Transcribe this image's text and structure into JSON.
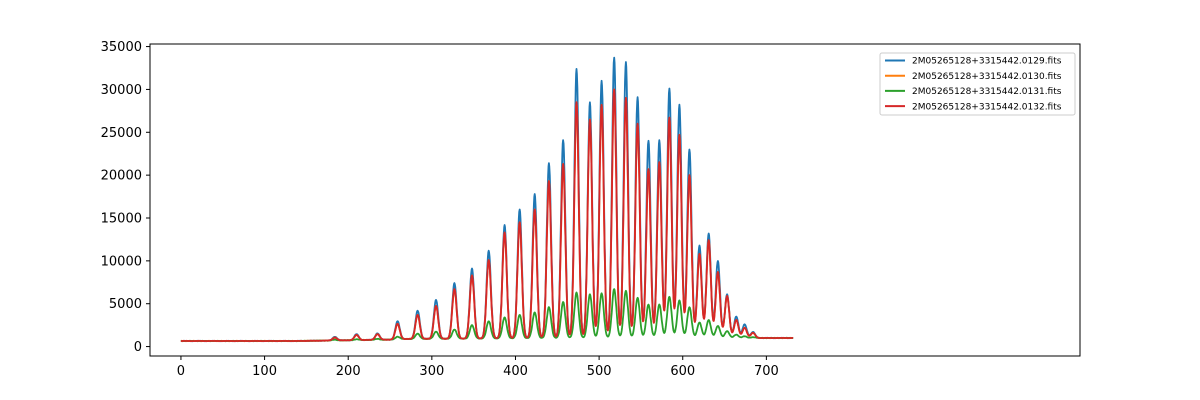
{
  "chart_data": {
    "type": "line",
    "title": "",
    "xlabel": "",
    "ylabel": "",
    "xlim": [
      -37,
      1075
    ],
    "ylim": [
      -1100,
      35300
    ],
    "xticks": [
      0,
      100,
      200,
      300,
      400,
      500,
      600,
      700
    ],
    "yticks": [
      0,
      5000,
      10000,
      15000,
      20000,
      25000,
      30000,
      35000
    ],
    "grid": false,
    "legend": "top-right",
    "x_range": [
      0,
      732
    ],
    "baseline": 650,
    "tail_level": 1000,
    "peak_width": 2.6,
    "series": [
      {
        "name": "2M05265128+3315442.0129.fits",
        "color": "#1f77b4",
        "peaks": [
          [
            184,
            1150
          ],
          [
            210,
            1450
          ],
          [
            235,
            1550
          ],
          [
            259,
            2950
          ],
          [
            283,
            4200
          ],
          [
            305,
            5450
          ],
          [
            327,
            7400
          ],
          [
            348,
            9100
          ],
          [
            368,
            11200
          ],
          [
            387,
            14200
          ],
          [
            405,
            16000
          ],
          [
            423,
            17800
          ],
          [
            440,
            21400
          ],
          [
            457,
            24100
          ],
          [
            473,
            32400
          ],
          [
            489,
            28500
          ],
          [
            503,
            31000
          ],
          [
            518,
            33700
          ],
          [
            532,
            33200
          ],
          [
            546,
            29100
          ],
          [
            559,
            24000
          ],
          [
            572,
            24100
          ],
          [
            584,
            30100
          ],
          [
            596,
            28200
          ],
          [
            608,
            23000
          ],
          [
            620,
            11800
          ],
          [
            631,
            13200
          ],
          [
            642,
            10000
          ],
          [
            653,
            6100
          ],
          [
            664,
            3500
          ],
          [
            674,
            2600
          ],
          [
            684,
            1700
          ]
        ]
      },
      {
        "name": "2M05265128+3315442.0130.fits",
        "color": "#ff7f0e",
        "peaks": [
          [
            184,
            1050
          ],
          [
            210,
            1350
          ],
          [
            235,
            1450
          ],
          [
            259,
            2650
          ],
          [
            283,
            3700
          ],
          [
            305,
            4750
          ],
          [
            327,
            6700
          ],
          [
            348,
            8300
          ],
          [
            368,
            10100
          ],
          [
            387,
            13300
          ],
          [
            405,
            14500
          ],
          [
            423,
            16000
          ],
          [
            440,
            19300
          ],
          [
            457,
            21300
          ],
          [
            473,
            28500
          ],
          [
            489,
            26500
          ],
          [
            503,
            28200
          ],
          [
            518,
            30000
          ],
          [
            532,
            29000
          ],
          [
            546,
            26000
          ],
          [
            559,
            20700
          ],
          [
            572,
            21500
          ],
          [
            584,
            26700
          ],
          [
            596,
            24700
          ],
          [
            608,
            20000
          ],
          [
            620,
            10800
          ],
          [
            631,
            12400
          ],
          [
            642,
            8700
          ],
          [
            653,
            5900
          ],
          [
            664,
            3100
          ],
          [
            674,
            2200
          ],
          [
            684,
            1600
          ]
        ]
      },
      {
        "name": "2M05265128+3315442.0131.fits",
        "color": "#2ca02c",
        "peaks": [
          [
            184,
            800
          ],
          [
            210,
            850
          ],
          [
            235,
            900
          ],
          [
            259,
            1150
          ],
          [
            283,
            1500
          ],
          [
            305,
            1750
          ],
          [
            327,
            2000
          ],
          [
            348,
            2500
          ],
          [
            368,
            2950
          ],
          [
            387,
            3400
          ],
          [
            405,
            3700
          ],
          [
            423,
            4000
          ],
          [
            440,
            4600
          ],
          [
            457,
            5200
          ],
          [
            473,
            6300
          ],
          [
            489,
            6100
          ],
          [
            503,
            6200
          ],
          [
            518,
            6700
          ],
          [
            532,
            6500
          ],
          [
            546,
            5700
          ],
          [
            559,
            4900
          ],
          [
            572,
            4900
          ],
          [
            584,
            5800
          ],
          [
            596,
            5400
          ],
          [
            608,
            4600
          ],
          [
            620,
            2800
          ],
          [
            631,
            3100
          ],
          [
            642,
            2400
          ],
          [
            653,
            1800
          ],
          [
            664,
            1400
          ],
          [
            674,
            1200
          ],
          [
            684,
            1100
          ]
        ]
      },
      {
        "name": "2M05265128+3315442.0132.fits",
        "color": "#d62728",
        "peaks": [
          [
            184,
            1050
          ],
          [
            210,
            1350
          ],
          [
            235,
            1450
          ],
          [
            259,
            2650
          ],
          [
            283,
            3700
          ],
          [
            305,
            4750
          ],
          [
            327,
            6700
          ],
          [
            348,
            8300
          ],
          [
            368,
            10100
          ],
          [
            387,
            13300
          ],
          [
            405,
            14500
          ],
          [
            423,
            16000
          ],
          [
            440,
            19300
          ],
          [
            457,
            21300
          ],
          [
            473,
            28500
          ],
          [
            489,
            26500
          ],
          [
            503,
            28200
          ],
          [
            518,
            30000
          ],
          [
            532,
            29000
          ],
          [
            546,
            26000
          ],
          [
            559,
            20700
          ],
          [
            572,
            21500
          ],
          [
            584,
            26700
          ],
          [
            596,
            24700
          ],
          [
            608,
            20000
          ],
          [
            620,
            10800
          ],
          [
            631,
            12400
          ],
          [
            642,
            8700
          ],
          [
            653,
            5900
          ],
          [
            664,
            3100
          ],
          [
            674,
            2200
          ],
          [
            684,
            1600
          ]
        ]
      }
    ]
  }
}
